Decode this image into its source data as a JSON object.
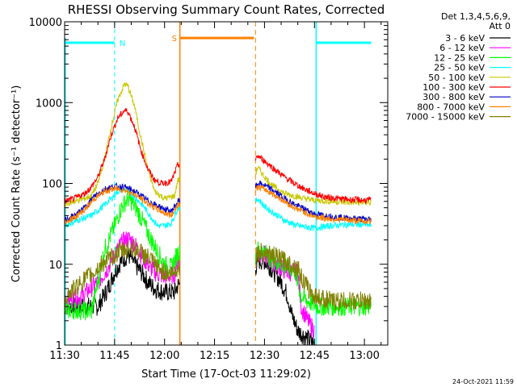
{
  "chart_data": {
    "type": "line",
    "title": "RHESSI Observing Summary Count Rates, Corrected",
    "xlabel": "Start Time (17-Oct-03 11:29:02)",
    "ylabel": "Corrected Count Rate (s⁻¹ detector⁻¹)",
    "yscale": "log",
    "ylim": [
      1,
      10000
    ],
    "xlim_minutes": [
      690,
      787
    ],
    "x_ticks": [
      {
        "label": "11:30",
        "value": 690
      },
      {
        "label": "11:45",
        "value": 705
      },
      {
        "label": "12:00",
        "value": 720
      },
      {
        "label": "12:15",
        "value": 735
      },
      {
        "label": "12:30",
        "value": 750
      },
      {
        "label": "12:45",
        "value": 765
      },
      {
        "label": "13:00",
        "value": 780
      }
    ],
    "y_ticks": [
      {
        "label": "1",
        "value": 1
      },
      {
        "label": "10",
        "value": 10
      },
      {
        "label": "100",
        "value": 100
      },
      {
        "label": "1000",
        "value": 1000
      },
      {
        "label": "10000",
        "value": 10000
      }
    ],
    "legend_header": [
      "Det 1,3,4,5,6,9,",
      "Att 0"
    ],
    "timestamp": "24-Oct-2021 11:59",
    "markers": [
      {
        "label": "N",
        "type": "night",
        "color": "#00ffff",
        "start": 705,
        "end": 765.5,
        "level": 5500
      },
      {
        "label": "S",
        "type": "saa",
        "color": "#ff8000",
        "start": 724.6,
        "end": 747.3,
        "level": 6300
      }
    ],
    "background_spans": [
      {
        "color": "#00ffff",
        "from": 690,
        "to": 705,
        "level": 5500
      },
      {
        "color": "#00ffff",
        "from": 765.5,
        "to": 782,
        "level": 5500
      }
    ],
    "data_gap": [
      724.6,
      747.3
    ],
    "series": [
      {
        "name": "3 - 6 keV",
        "color": "#000000",
        "points": [
          [
            690,
            3
          ],
          [
            700,
            3
          ],
          [
            703,
            5
          ],
          [
            705,
            8
          ],
          [
            707,
            11
          ],
          [
            709,
            13
          ],
          [
            710,
            12
          ],
          [
            711,
            10
          ],
          [
            713,
            8
          ],
          [
            715,
            6
          ],
          [
            717,
            5
          ],
          [
            720,
            4.5
          ],
          [
            723,
            4.5
          ],
          [
            724,
            5.5
          ],
          [
            747.3,
            9
          ],
          [
            748,
            11
          ],
          [
            750,
            11
          ],
          [
            752,
            9
          ],
          [
            755,
            6
          ],
          [
            757,
            4
          ],
          [
            758,
            2.5
          ],
          [
            760,
            1.5
          ],
          [
            763,
            1.2
          ],
          [
            765,
            1
          ]
        ]
      },
      {
        "name": "6 - 12 keV",
        "color": "#ff00ff",
        "points": [
          [
            690,
            3.5
          ],
          [
            695,
            4
          ],
          [
            700,
            6
          ],
          [
            703,
            9
          ],
          [
            705,
            13
          ],
          [
            707,
            18
          ],
          [
            709,
            21
          ],
          [
            711,
            18
          ],
          [
            713,
            13
          ],
          [
            715,
            10
          ],
          [
            717,
            8
          ],
          [
            720,
            7
          ],
          [
            723,
            7.5
          ],
          [
            724,
            12
          ],
          [
            747.3,
            12
          ],
          [
            748,
            14
          ],
          [
            750,
            13
          ],
          [
            752,
            11
          ],
          [
            755,
            9
          ],
          [
            757,
            8
          ],
          [
            760,
            8
          ],
          [
            761,
            3
          ],
          [
            763,
            2
          ],
          [
            765,
            1.5
          ]
        ]
      },
      {
        "name": "12 - 25 keV",
        "color": "#00ff00",
        "points": [
          [
            690,
            2.7
          ],
          [
            694,
            2.7
          ],
          [
            698,
            2.6
          ],
          [
            700,
            6
          ],
          [
            702,
            15
          ],
          [
            705,
            30
          ],
          [
            707,
            50
          ],
          [
            709,
            65
          ],
          [
            710,
            60
          ],
          [
            712,
            45
          ],
          [
            714,
            30
          ],
          [
            716,
            20
          ],
          [
            718,
            14
          ],
          [
            720,
            10
          ],
          [
            722,
            9
          ],
          [
            724,
            14
          ],
          [
            747.3,
            13
          ],
          [
            748,
            15
          ],
          [
            750,
            14
          ],
          [
            752,
            12
          ],
          [
            755,
            10
          ],
          [
            757,
            9
          ],
          [
            759,
            8.5
          ],
          [
            761,
            4
          ],
          [
            763,
            3.5
          ],
          [
            766,
            3
          ],
          [
            770,
            3
          ],
          [
            775,
            3
          ],
          [
            780,
            3
          ],
          [
            782,
            3
          ]
        ]
      },
      {
        "name": "25 - 50 keV",
        "color": "#00ffff",
        "points": [
          [
            690,
            30
          ],
          [
            694,
            35
          ],
          [
            698,
            40
          ],
          [
            701,
            50
          ],
          [
            704,
            65
          ],
          [
            706,
            80
          ],
          [
            708,
            85
          ],
          [
            710,
            75
          ],
          [
            712,
            62
          ],
          [
            714,
            50
          ],
          [
            716,
            38
          ],
          [
            718,
            30
          ],
          [
            720,
            30
          ],
          [
            722,
            32
          ],
          [
            724,
            50
          ],
          [
            747.3,
            60
          ],
          [
            748,
            65
          ],
          [
            750,
            52
          ],
          [
            752,
            45
          ],
          [
            754,
            40
          ],
          [
            756,
            35
          ],
          [
            758,
            32
          ],
          [
            760,
            30
          ],
          [
            762,
            29
          ],
          [
            765,
            28
          ],
          [
            770,
            30
          ],
          [
            775,
            31
          ],
          [
            780,
            31
          ],
          [
            782,
            30
          ]
        ]
      },
      {
        "name": "50 - 100 keV",
        "color": "#c8c800",
        "points": [
          [
            690,
            55
          ],
          [
            693,
            60
          ],
          [
            696,
            65
          ],
          [
            698,
            70
          ],
          [
            700,
            100
          ],
          [
            702,
            200
          ],
          [
            704,
            500
          ],
          [
            706,
            1100
          ],
          [
            708,
            1700
          ],
          [
            709,
            1600
          ],
          [
            711,
            900
          ],
          [
            713,
            350
          ],
          [
            715,
            150
          ],
          [
            717,
            80
          ],
          [
            720,
            65
          ],
          [
            723,
            70
          ],
          [
            724,
            110
          ],
          [
            747.3,
            130
          ],
          [
            748,
            160
          ],
          [
            750,
            120
          ],
          [
            753,
            90
          ],
          [
            756,
            75
          ],
          [
            759,
            70
          ],
          [
            762,
            65
          ],
          [
            765,
            62
          ],
          [
            770,
            60
          ],
          [
            775,
            58
          ],
          [
            780,
            58
          ],
          [
            782,
            58
          ]
        ]
      },
      {
        "name": "100 - 300 keV",
        "color": "#ff0000",
        "points": [
          [
            690,
            60
          ],
          [
            693,
            65
          ],
          [
            696,
            75
          ],
          [
            698,
            90
          ],
          [
            700,
            120
          ],
          [
            702,
            200
          ],
          [
            704,
            400
          ],
          [
            706,
            650
          ],
          [
            708,
            800
          ],
          [
            709,
            780
          ],
          [
            711,
            500
          ],
          [
            713,
            250
          ],
          [
            715,
            150
          ],
          [
            717,
            110
          ],
          [
            719,
            100
          ],
          [
            722,
            105
          ],
          [
            724,
            170
          ],
          [
            747.3,
            190
          ],
          [
            748,
            220
          ],
          [
            750,
            190
          ],
          [
            753,
            150
          ],
          [
            756,
            120
          ],
          [
            759,
            100
          ],
          [
            762,
            85
          ],
          [
            765,
            75
          ],
          [
            768,
            68
          ],
          [
            772,
            65
          ],
          [
            776,
            63
          ],
          [
            780,
            62
          ],
          [
            782,
            62
          ]
        ]
      },
      {
        "name": "300 - 800 keV",
        "color": "#0000c8",
        "points": [
          [
            690,
            35
          ],
          [
            693,
            40
          ],
          [
            696,
            50
          ],
          [
            699,
            70
          ],
          [
            702,
            85
          ],
          [
            705,
            92
          ],
          [
            708,
            90
          ],
          [
            711,
            80
          ],
          [
            714,
            65
          ],
          [
            717,
            55
          ],
          [
            720,
            48
          ],
          [
            722,
            45
          ],
          [
            724,
            60
          ],
          [
            747.3,
            90
          ],
          [
            748,
            100
          ],
          [
            750,
            95
          ],
          [
            753,
            80
          ],
          [
            756,
            65
          ],
          [
            759,
            55
          ],
          [
            762,
            48
          ],
          [
            765,
            42
          ],
          [
            768,
            40
          ],
          [
            772,
            38
          ],
          [
            776,
            37
          ],
          [
            780,
            36
          ],
          [
            782,
            36
          ]
        ]
      },
      {
        "name": "800 - 7000 keV",
        "color": "#ff8000",
        "points": [
          [
            690,
            33
          ],
          [
            693,
            38
          ],
          [
            696,
            47
          ],
          [
            699,
            65
          ],
          [
            702,
            80
          ],
          [
            705,
            86
          ],
          [
            708,
            83
          ],
          [
            711,
            73
          ],
          [
            714,
            60
          ],
          [
            717,
            50
          ],
          [
            720,
            43
          ],
          [
            722,
            40
          ],
          [
            724,
            55
          ],
          [
            747.3,
            82
          ],
          [
            748,
            90
          ],
          [
            750,
            85
          ],
          [
            753,
            72
          ],
          [
            756,
            60
          ],
          [
            759,
            50
          ],
          [
            762,
            44
          ],
          [
            765,
            39
          ],
          [
            768,
            37
          ],
          [
            772,
            36
          ],
          [
            776,
            35
          ],
          [
            780,
            34
          ],
          [
            782,
            34
          ]
        ]
      },
      {
        "name": "7000 - 15000 keV",
        "color": "#808000",
        "points": [
          [
            690,
            4
          ],
          [
            693,
            5
          ],
          [
            696,
            6.5
          ],
          [
            699,
            8
          ],
          [
            701,
            10
          ],
          [
            704,
            12
          ],
          [
            706,
            14
          ],
          [
            708,
            15
          ],
          [
            710,
            16
          ],
          [
            712,
            15
          ],
          [
            714,
            13
          ],
          [
            716,
            11
          ],
          [
            718,
            9
          ],
          [
            720,
            8
          ],
          [
            722,
            7.5
          ],
          [
            724,
            9
          ],
          [
            747.3,
            13
          ],
          [
            748,
            14
          ],
          [
            750,
            14
          ],
          [
            752,
            13
          ],
          [
            754,
            12
          ],
          [
            756,
            11
          ],
          [
            758,
            10
          ],
          [
            760,
            9
          ],
          [
            761,
            7
          ],
          [
            763,
            5
          ],
          [
            765,
            4
          ],
          [
            770,
            3.5
          ],
          [
            775,
            3.5
          ],
          [
            780,
            3.5
          ],
          [
            782,
            3.5
          ]
        ]
      }
    ]
  }
}
